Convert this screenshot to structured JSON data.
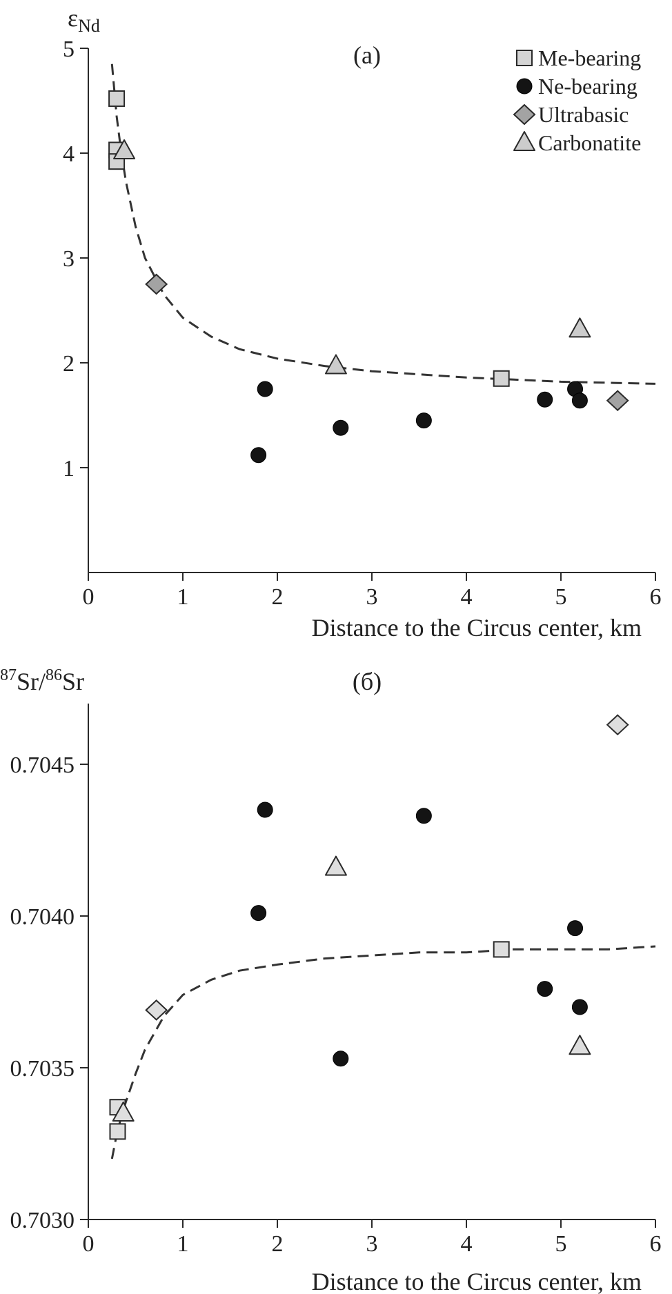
{
  "chart_data": [
    {
      "type": "scatter",
      "panel_label": "(a)",
      "ylabel": "ε",
      "ylabel_sub": "Nd",
      "xlabel": "Distance to the Circus center, km",
      "xlim": [
        0,
        6
      ],
      "ylim": [
        0,
        5
      ],
      "xticks": [
        0,
        1,
        2,
        3,
        4,
        5,
        6
      ],
      "xtick_labels": [
        "0",
        "1",
        "2",
        "3",
        "4",
        "5",
        "6"
      ],
      "yticks": [
        1,
        2,
        3,
        4,
        5
      ],
      "ytick_labels": [
        "1",
        "2",
        "3",
        "4",
        "5"
      ],
      "legend": {
        "position": "top-right",
        "entries": [
          {
            "series": "Me-bearing",
            "label": "Me-bearing"
          },
          {
            "series": "Ne-bearing",
            "label": "Ne-bearing"
          },
          {
            "series": "Ultrabasic",
            "label": "Ultrabasic"
          },
          {
            "series": "Carbonatite",
            "label": "Carbonatite"
          }
        ]
      },
      "series": [
        {
          "name": "Me-bearing",
          "marker": "square",
          "fill": "#d4d4d4",
          "points": [
            [
              0.3,
              4.52
            ],
            [
              0.3,
              4.03
            ],
            [
              0.3,
              3.92
            ],
            [
              4.37,
              1.85
            ]
          ]
        },
        {
          "name": "Ne-bearing",
          "marker": "circle",
          "fill": "#141414",
          "points": [
            [
              1.87,
              1.75
            ],
            [
              1.8,
              1.12
            ],
            [
              2.67,
              1.38
            ],
            [
              3.55,
              1.45
            ],
            [
              4.83,
              1.65
            ],
            [
              5.15,
              1.75
            ],
            [
              5.2,
              1.64
            ]
          ]
        },
        {
          "name": "Ultrabasic",
          "marker": "diamond",
          "fill": "#a3a3a3",
          "points": [
            [
              0.72,
              2.75
            ],
            [
              5.6,
              1.64
            ]
          ]
        },
        {
          "name": "Carbonatite",
          "marker": "triangle",
          "fill": "#cccccc",
          "points": [
            [
              0.38,
              4.02
            ],
            [
              2.62,
              1.97
            ],
            [
              5.2,
              2.32
            ]
          ]
        }
      ],
      "trend_line": {
        "style": "dashed",
        "x": [
          0.25,
          0.3,
          0.35,
          0.4,
          0.5,
          0.6,
          0.8,
          1.0,
          1.3,
          1.6,
          2.0,
          2.5,
          3.0,
          3.5,
          4.0,
          4.5,
          5.0,
          5.5,
          6.0
        ],
        "y": [
          4.85,
          4.35,
          4.0,
          3.72,
          3.3,
          3.0,
          2.65,
          2.43,
          2.25,
          2.13,
          2.04,
          1.97,
          1.92,
          1.89,
          1.86,
          1.84,
          1.82,
          1.81,
          1.8
        ]
      }
    },
    {
      "type": "scatter",
      "panel_label": "(б)",
      "ylabel": "87Sr/86Sr",
      "ylabel_parts": {
        "sup1": "87",
        "base1": "Sr/",
        "sup2": "86",
        "base2": "Sr"
      },
      "xlabel": "Distance to the Circus center, km",
      "xlim": [
        0,
        6
      ],
      "ylim": [
        0.703,
        0.7047
      ],
      "xticks": [
        0,
        1,
        2,
        3,
        4,
        5,
        6
      ],
      "xtick_labels": [
        "0",
        "1",
        "2",
        "3",
        "4",
        "5",
        "6"
      ],
      "yticks": [
        0.703,
        0.7035,
        0.704,
        0.7045
      ],
      "ytick_labels": [
        "0.7030",
        "0.7035",
        "0.7040",
        "0.7045"
      ],
      "series": [
        {
          "name": "Me-bearing",
          "marker": "square",
          "fill": "#dedede",
          "points": [
            [
              0.31,
              0.70337
            ],
            [
              0.31,
              0.70329
            ],
            [
              4.37,
              0.70389
            ]
          ]
        },
        {
          "name": "Ne-bearing",
          "marker": "circle",
          "fill": "#141414",
          "points": [
            [
              1.87,
              0.70435
            ],
            [
              1.8,
              0.70401
            ],
            [
              2.67,
              0.70353
            ],
            [
              3.55,
              0.70433
            ],
            [
              4.83,
              0.70376
            ],
            [
              5.15,
              0.70396
            ],
            [
              5.2,
              0.7037
            ]
          ]
        },
        {
          "name": "Ultrabasic",
          "marker": "diamond",
          "fill": "#dedede",
          "points": [
            [
              0.72,
              0.70369
            ],
            [
              5.6,
              0.70463
            ]
          ]
        },
        {
          "name": "Carbonatite",
          "marker": "triangle",
          "fill": "#dedede",
          "points": [
            [
              0.37,
              0.70335
            ],
            [
              2.62,
              0.70416
            ],
            [
              5.2,
              0.70357
            ]
          ]
        }
      ],
      "trend_line": {
        "style": "dashed",
        "x": [
          0.25,
          0.3,
          0.35,
          0.4,
          0.5,
          0.6,
          0.8,
          1.0,
          1.3,
          1.6,
          2.0,
          2.5,
          3.0,
          3.5,
          4.0,
          4.5,
          5.0,
          5.5,
          6.0
        ],
        "y": [
          0.7032,
          0.70328,
          0.70334,
          0.70339,
          0.70348,
          0.70356,
          0.70367,
          0.70374,
          0.70379,
          0.70382,
          0.70384,
          0.70386,
          0.70387,
          0.70388,
          0.70388,
          0.70389,
          0.70389,
          0.70389,
          0.7039
        ]
      }
    }
  ]
}
